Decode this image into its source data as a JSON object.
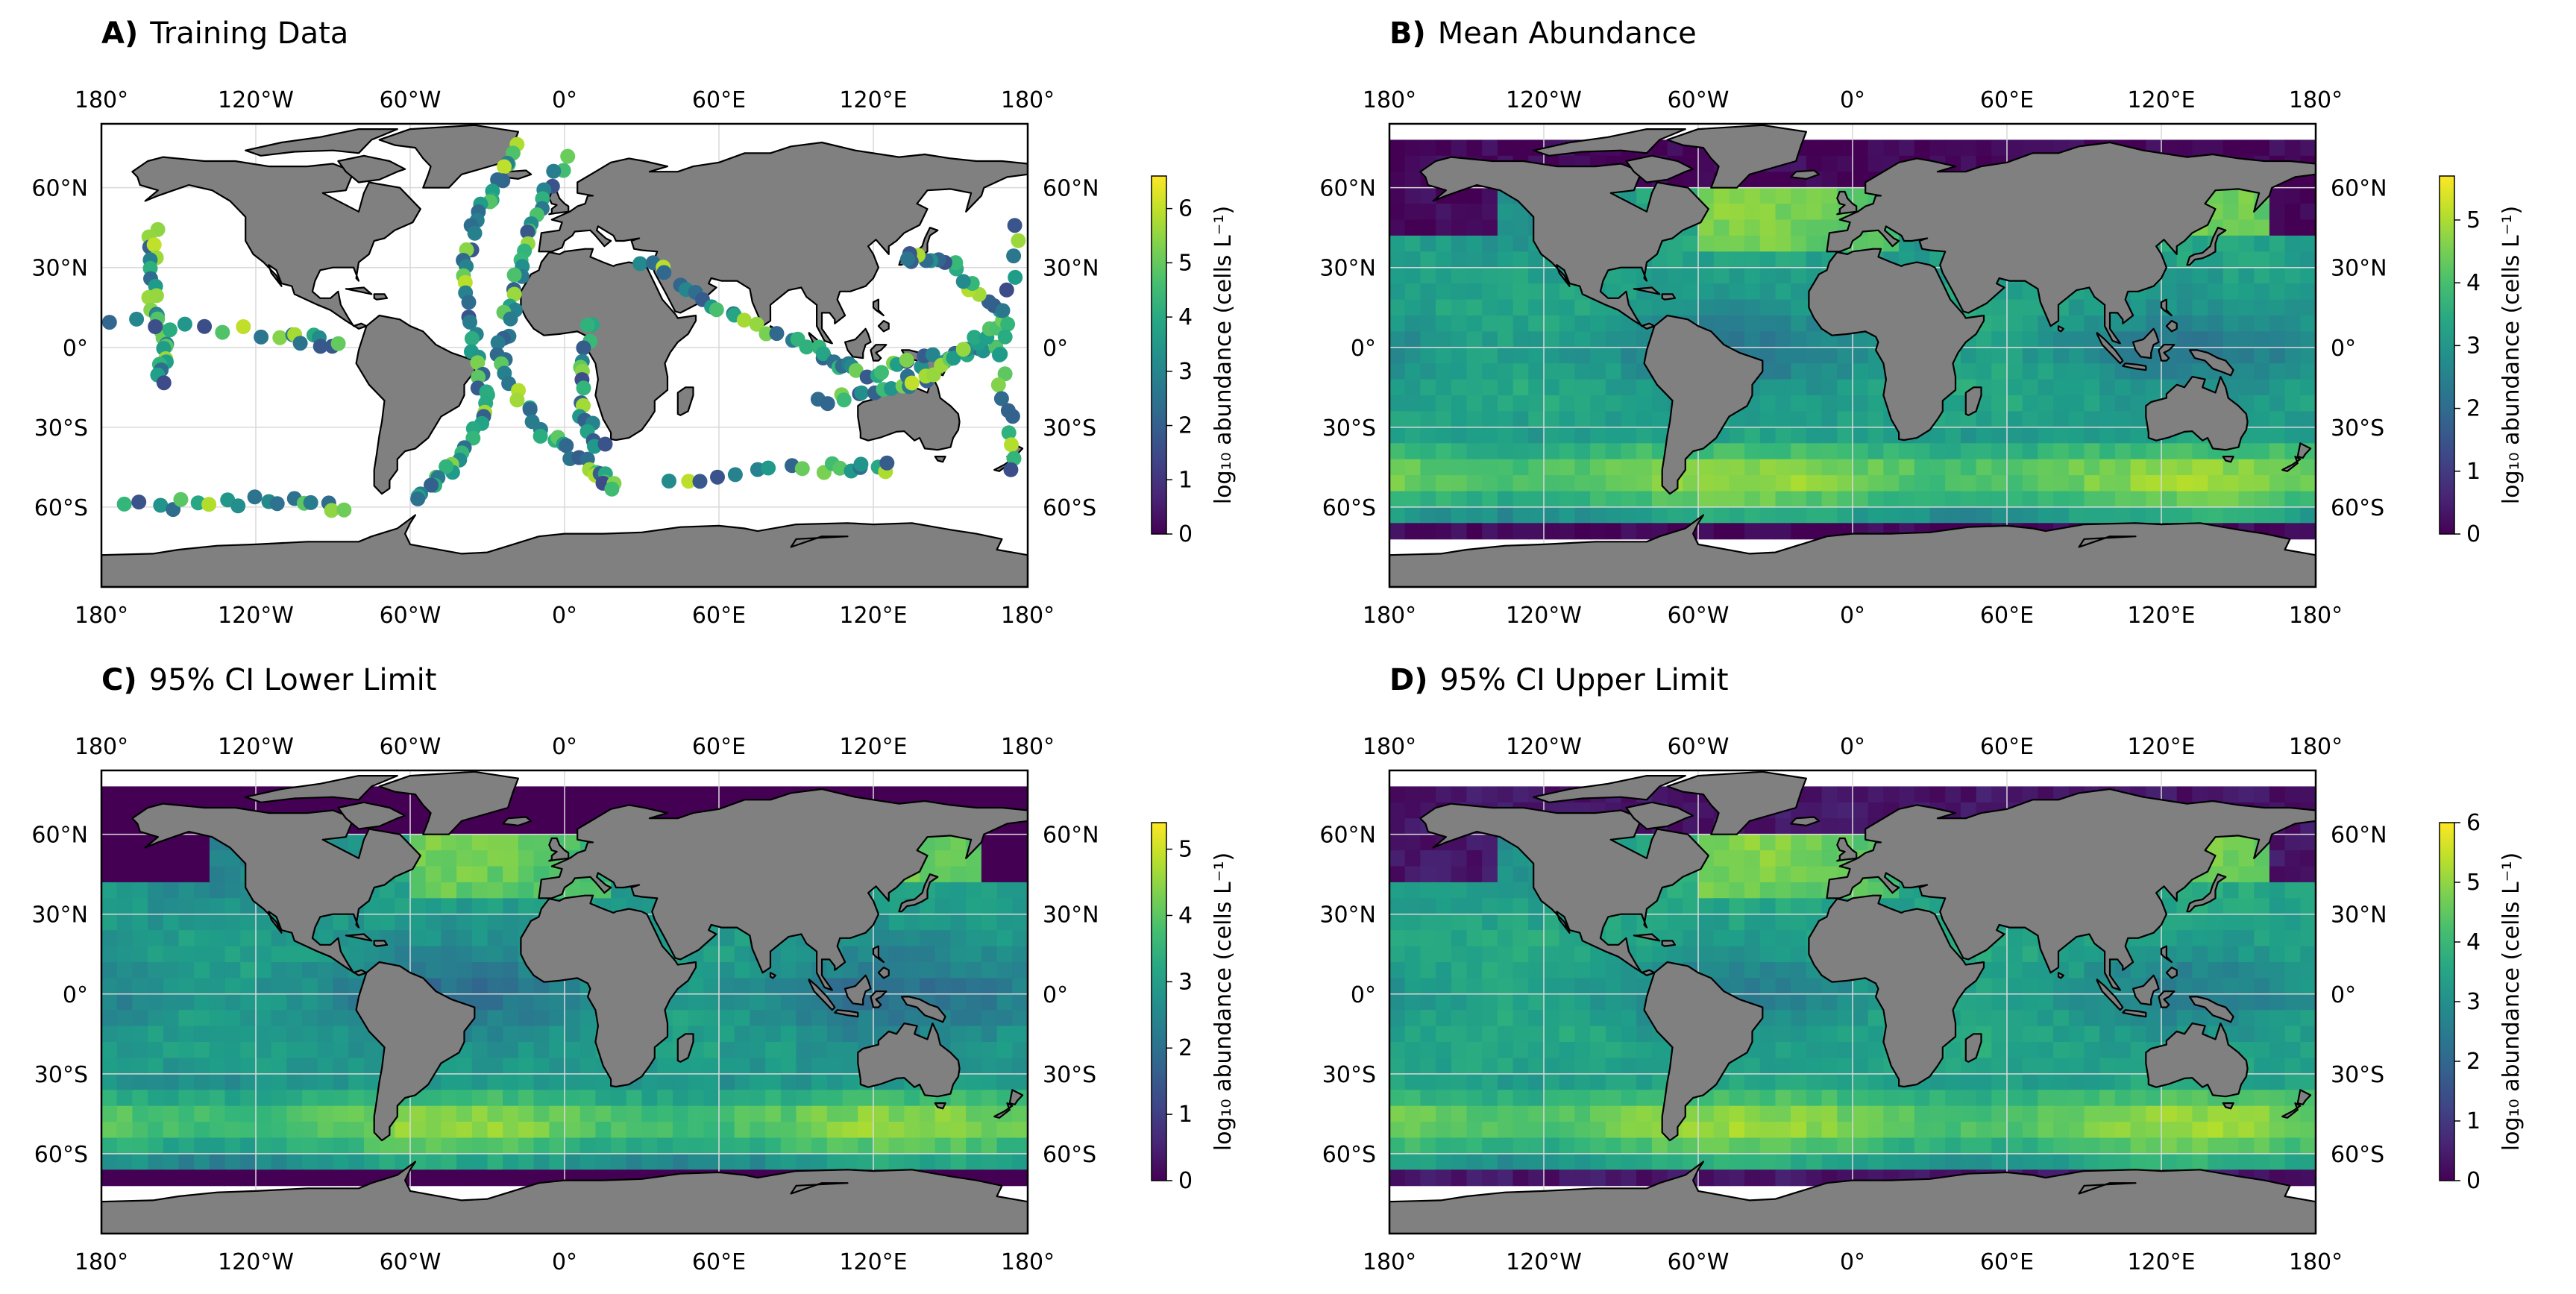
{
  "figure": {
    "lon_ticks": [
      "180°",
      "120°W",
      "60°W",
      "0°",
      "60°E",
      "120°E",
      "180°"
    ],
    "lat_ticks": [
      "60°N",
      "30°N",
      "0°",
      "30°S",
      "60°S"
    ],
    "colorbar_label": "log₁₀ abundance (cells L⁻¹)",
    "colormap": "viridis",
    "land_color": "#808080",
    "grid_color": "#d9d9d9"
  },
  "panels": [
    {
      "letter": "A)",
      "title": "Training Data",
      "kind": "points",
      "colorbar_ticks": [
        "0",
        "1",
        "2",
        "3",
        "4",
        "5",
        "6"
      ],
      "vmax": 6.6
    },
    {
      "letter": "B)",
      "title": "Mean Abundance",
      "kind": "field",
      "colorbar_ticks": [
        "0",
        "1",
        "2",
        "3",
        "4",
        "5"
      ],
      "vmax": 5.7
    },
    {
      "letter": "C)",
      "title": "95% CI Lower Limit",
      "kind": "field",
      "colorbar_ticks": [
        "0",
        "1",
        "2",
        "3",
        "4",
        "5"
      ],
      "vmax": 5.4
    },
    {
      "letter": "D)",
      "title": "95% CI Upper Limit",
      "kind": "field",
      "colorbar_ticks": [
        "0",
        "1",
        "2",
        "3",
        "4",
        "5",
        "6"
      ],
      "vmax": 6.0
    }
  ]
}
